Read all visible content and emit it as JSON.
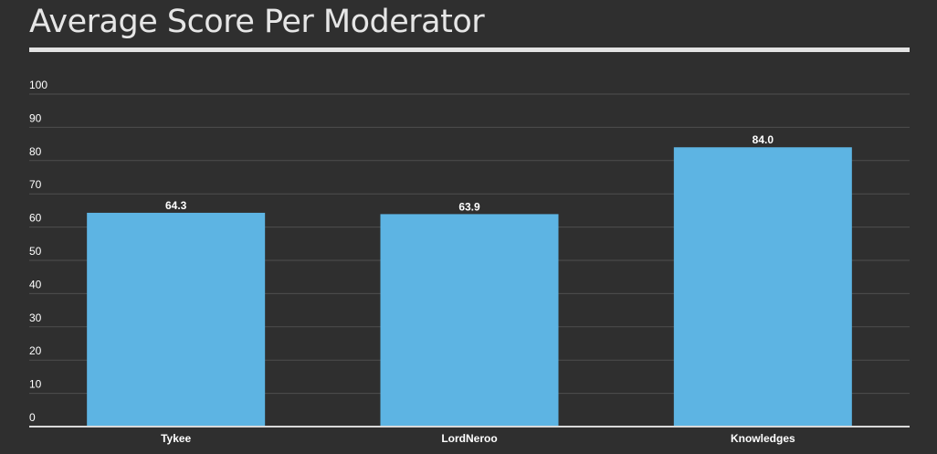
{
  "title": "Average Score Per Moderator",
  "colors": {
    "background": "#2f2f2f",
    "bar": "#5db4e3",
    "text": "#ffffff",
    "rule": "#e3e3e3"
  },
  "chart_data": {
    "type": "bar",
    "title": "Average Score Per Moderator",
    "xlabel": "",
    "ylabel": "",
    "categories": [
      "Tykee",
      "LordNeroo",
      "Knowledges"
    ],
    "values": [
      64.3,
      63.9,
      84.0
    ],
    "data_labels": [
      "64.3",
      "63.9",
      "84.0"
    ],
    "ylim": [
      0,
      100
    ],
    "yticks": [
      0,
      10,
      20,
      30,
      40,
      50,
      60,
      70,
      80,
      90,
      100
    ],
    "grid": true,
    "legend": "none"
  }
}
